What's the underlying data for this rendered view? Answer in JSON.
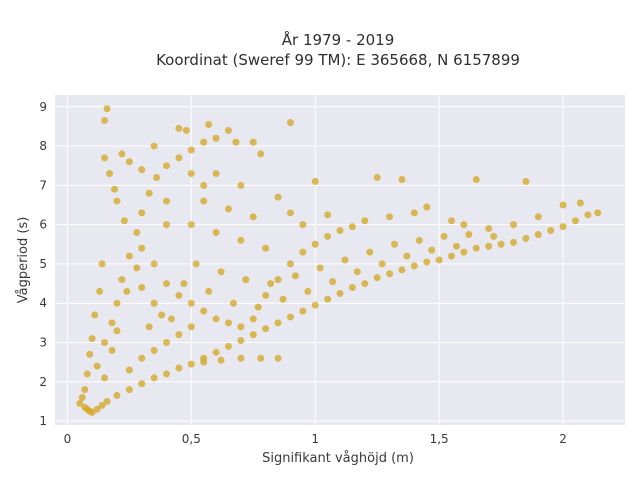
{
  "chart_data": {
    "type": "scatter",
    "title": "År 1979 - 2019",
    "subtitle": "Koordinat (Sweref 99 TM): E 365668, N 6157899",
    "xlabel": "Signifikant våghöjd (m)",
    "ylabel": "Vågperiod (s)",
    "xlim": [
      -0.05,
      2.25
    ],
    "ylim": [
      0.9,
      9.3
    ],
    "x_ticks": [
      0,
      0.5,
      1,
      1.5,
      2
    ],
    "x_tick_labels": [
      "0",
      "0,5",
      "1",
      "1,5",
      "2"
    ],
    "y_ticks": [
      1,
      2,
      3,
      4,
      5,
      6,
      7,
      8,
      9
    ],
    "y_tick_labels": [
      "1",
      "2",
      "3",
      "4",
      "5",
      "6",
      "7",
      "8",
      "9"
    ],
    "grid": true,
    "series": [
      {
        "color": "#d4a520",
        "points": [
          [
            0.05,
            1.45
          ],
          [
            0.07,
            1.35
          ],
          [
            0.08,
            1.3
          ],
          [
            0.09,
            1.25
          ],
          [
            0.1,
            1.22
          ],
          [
            0.12,
            1.3
          ],
          [
            0.14,
            1.4
          ],
          [
            0.16,
            1.5
          ],
          [
            0.2,
            1.65
          ],
          [
            0.25,
            1.8
          ],
          [
            0.3,
            1.95
          ],
          [
            0.35,
            2.1
          ],
          [
            0.4,
            2.2
          ],
          [
            0.45,
            2.35
          ],
          [
            0.5,
            2.45
          ],
          [
            0.55,
            2.6
          ],
          [
            0.6,
            2.75
          ],
          [
            0.65,
            2.9
          ],
          [
            0.7,
            3.05
          ],
          [
            0.75,
            3.2
          ],
          [
            0.8,
            3.35
          ],
          [
            0.85,
            3.5
          ],
          [
            0.9,
            3.65
          ],
          [
            0.95,
            3.8
          ],
          [
            1.0,
            3.95
          ],
          [
            1.05,
            4.1
          ],
          [
            1.1,
            4.25
          ],
          [
            1.15,
            4.4
          ],
          [
            1.2,
            4.5
          ],
          [
            1.25,
            4.65
          ],
          [
            1.3,
            4.75
          ],
          [
            1.35,
            4.85
          ],
          [
            1.4,
            4.95
          ],
          [
            1.45,
            5.05
          ],
          [
            1.5,
            5.1
          ],
          [
            1.55,
            5.2
          ],
          [
            1.6,
            5.3
          ],
          [
            1.65,
            5.4
          ],
          [
            1.7,
            5.45
          ],
          [
            1.75,
            5.5
          ],
          [
            1.8,
            5.55
          ],
          [
            1.85,
            5.65
          ],
          [
            1.9,
            5.75
          ],
          [
            1.95,
            5.85
          ],
          [
            2.0,
            5.95
          ],
          [
            2.05,
            6.1
          ],
          [
            2.1,
            6.25
          ],
          [
            2.14,
            6.3
          ],
          [
            0.12,
            2.4
          ],
          [
            0.15,
            3.0
          ],
          [
            0.18,
            3.5
          ],
          [
            0.2,
            4.0
          ],
          [
            0.22,
            4.6
          ],
          [
            0.25,
            5.2
          ],
          [
            0.28,
            5.8
          ],
          [
            0.3,
            6.3
          ],
          [
            0.33,
            6.8
          ],
          [
            0.36,
            7.2
          ],
          [
            0.4,
            7.5
          ],
          [
            0.45,
            7.7
          ],
          [
            0.5,
            7.9
          ],
          [
            0.55,
            8.1
          ],
          [
            0.6,
            8.2
          ],
          [
            0.68,
            8.1
          ],
          [
            0.75,
            8.1
          ],
          [
            0.78,
            7.8
          ],
          [
            0.15,
            7.7
          ],
          [
            0.17,
            7.3
          ],
          [
            0.2,
            6.6
          ],
          [
            0.23,
            6.1
          ],
          [
            0.3,
            5.4
          ],
          [
            0.35,
            5.0
          ],
          [
            0.4,
            4.5
          ],
          [
            0.45,
            4.2
          ],
          [
            0.5,
            4.0
          ],
          [
            0.55,
            3.8
          ],
          [
            0.6,
            3.6
          ],
          [
            0.65,
            3.5
          ],
          [
            0.7,
            3.4
          ],
          [
            0.75,
            3.6
          ],
          [
            0.8,
            4.2
          ],
          [
            0.85,
            4.6
          ],
          [
            0.9,
            5.0
          ],
          [
            0.95,
            5.3
          ],
          [
            1.0,
            5.5
          ],
          [
            1.05,
            5.7
          ],
          [
            1.1,
            5.85
          ],
          [
            1.15,
            5.95
          ],
          [
            1.2,
            6.1
          ],
          [
            1.3,
            6.2
          ],
          [
            1.4,
            6.3
          ],
          [
            1.45,
            6.45
          ],
          [
            1.55,
            6.1
          ],
          [
            1.6,
            6.0
          ],
          [
            1.7,
            5.9
          ],
          [
            1.8,
            6.0
          ],
          [
            1.9,
            6.2
          ],
          [
            2.0,
            6.5
          ],
          [
            2.07,
            6.55
          ],
          [
            1.25,
            7.2
          ],
          [
            1.35,
            7.15
          ],
          [
            1.65,
            7.15
          ],
          [
            1.85,
            7.1
          ],
          [
            1.0,
            7.1
          ],
          [
            0.85,
            6.7
          ],
          [
            0.9,
            6.3
          ],
          [
            0.7,
            7.0
          ],
          [
            0.6,
            7.3
          ],
          [
            0.5,
            7.3
          ],
          [
            0.45,
            8.45
          ],
          [
            0.57,
            8.55
          ],
          [
            0.48,
            8.4
          ],
          [
            0.15,
            8.65
          ],
          [
            0.16,
            8.95
          ],
          [
            0.65,
            8.4
          ],
          [
            0.9,
            8.6
          ],
          [
            0.35,
            8.0
          ],
          [
            0.3,
            7.4
          ],
          [
            0.25,
            7.6
          ],
          [
            0.22,
            7.8
          ],
          [
            0.19,
            6.9
          ],
          [
            0.14,
            5.0
          ],
          [
            0.13,
            4.3
          ],
          [
            0.11,
            3.7
          ],
          [
            0.1,
            3.1
          ],
          [
            0.09,
            2.7
          ],
          [
            0.08,
            2.2
          ],
          [
            0.07,
            1.8
          ],
          [
            0.06,
            1.6
          ],
          [
            0.25,
            2.3
          ],
          [
            0.3,
            2.6
          ],
          [
            0.35,
            2.8
          ],
          [
            0.4,
            3.0
          ],
          [
            0.45,
            3.2
          ],
          [
            0.5,
            3.4
          ],
          [
            0.55,
            2.5
          ],
          [
            0.62,
            2.55
          ],
          [
            0.7,
            2.6
          ],
          [
            0.78,
            2.6
          ],
          [
            0.85,
            2.6
          ],
          [
            0.4,
            6.0
          ],
          [
            0.5,
            6.0
          ],
          [
            0.6,
            5.8
          ],
          [
            0.7,
            5.6
          ],
          [
            0.8,
            5.4
          ],
          [
            0.55,
            6.6
          ],
          [
            0.65,
            6.4
          ],
          [
            0.75,
            6.2
          ],
          [
            0.3,
            4.4
          ],
          [
            0.35,
            4.0
          ],
          [
            0.42,
            3.6
          ],
          [
            0.52,
            5.0
          ],
          [
            0.62,
            4.8
          ],
          [
            0.72,
            4.6
          ],
          [
            0.82,
            4.5
          ],
          [
            0.92,
            4.7
          ],
          [
            1.02,
            4.9
          ],
          [
            1.12,
            5.1
          ],
          [
            1.22,
            5.3
          ],
          [
            1.32,
            5.5
          ],
          [
            1.42,
            5.6
          ],
          [
            1.52,
            5.7
          ],
          [
            1.62,
            5.75
          ],
          [
            1.72,
            5.7
          ],
          [
            0.95,
            6.0
          ],
          [
            1.05,
            6.25
          ],
          [
            0.55,
            7.0
          ],
          [
            0.4,
            6.6
          ],
          [
            0.28,
            4.9
          ],
          [
            0.24,
            4.3
          ],
          [
            0.2,
            3.3
          ],
          [
            0.18,
            2.8
          ],
          [
            0.15,
            2.1
          ],
          [
            0.33,
            3.4
          ],
          [
            0.38,
            3.7
          ],
          [
            0.47,
            4.5
          ],
          [
            0.57,
            4.3
          ],
          [
            0.67,
            4.0
          ],
          [
            0.77,
            3.9
          ],
          [
            0.87,
            4.1
          ],
          [
            0.97,
            4.3
          ],
          [
            1.07,
            4.55
          ],
          [
            1.17,
            4.8
          ],
          [
            1.27,
            5.0
          ],
          [
            1.37,
            5.2
          ],
          [
            1.47,
            5.35
          ],
          [
            1.57,
            5.45
          ]
        ]
      }
    ]
  }
}
